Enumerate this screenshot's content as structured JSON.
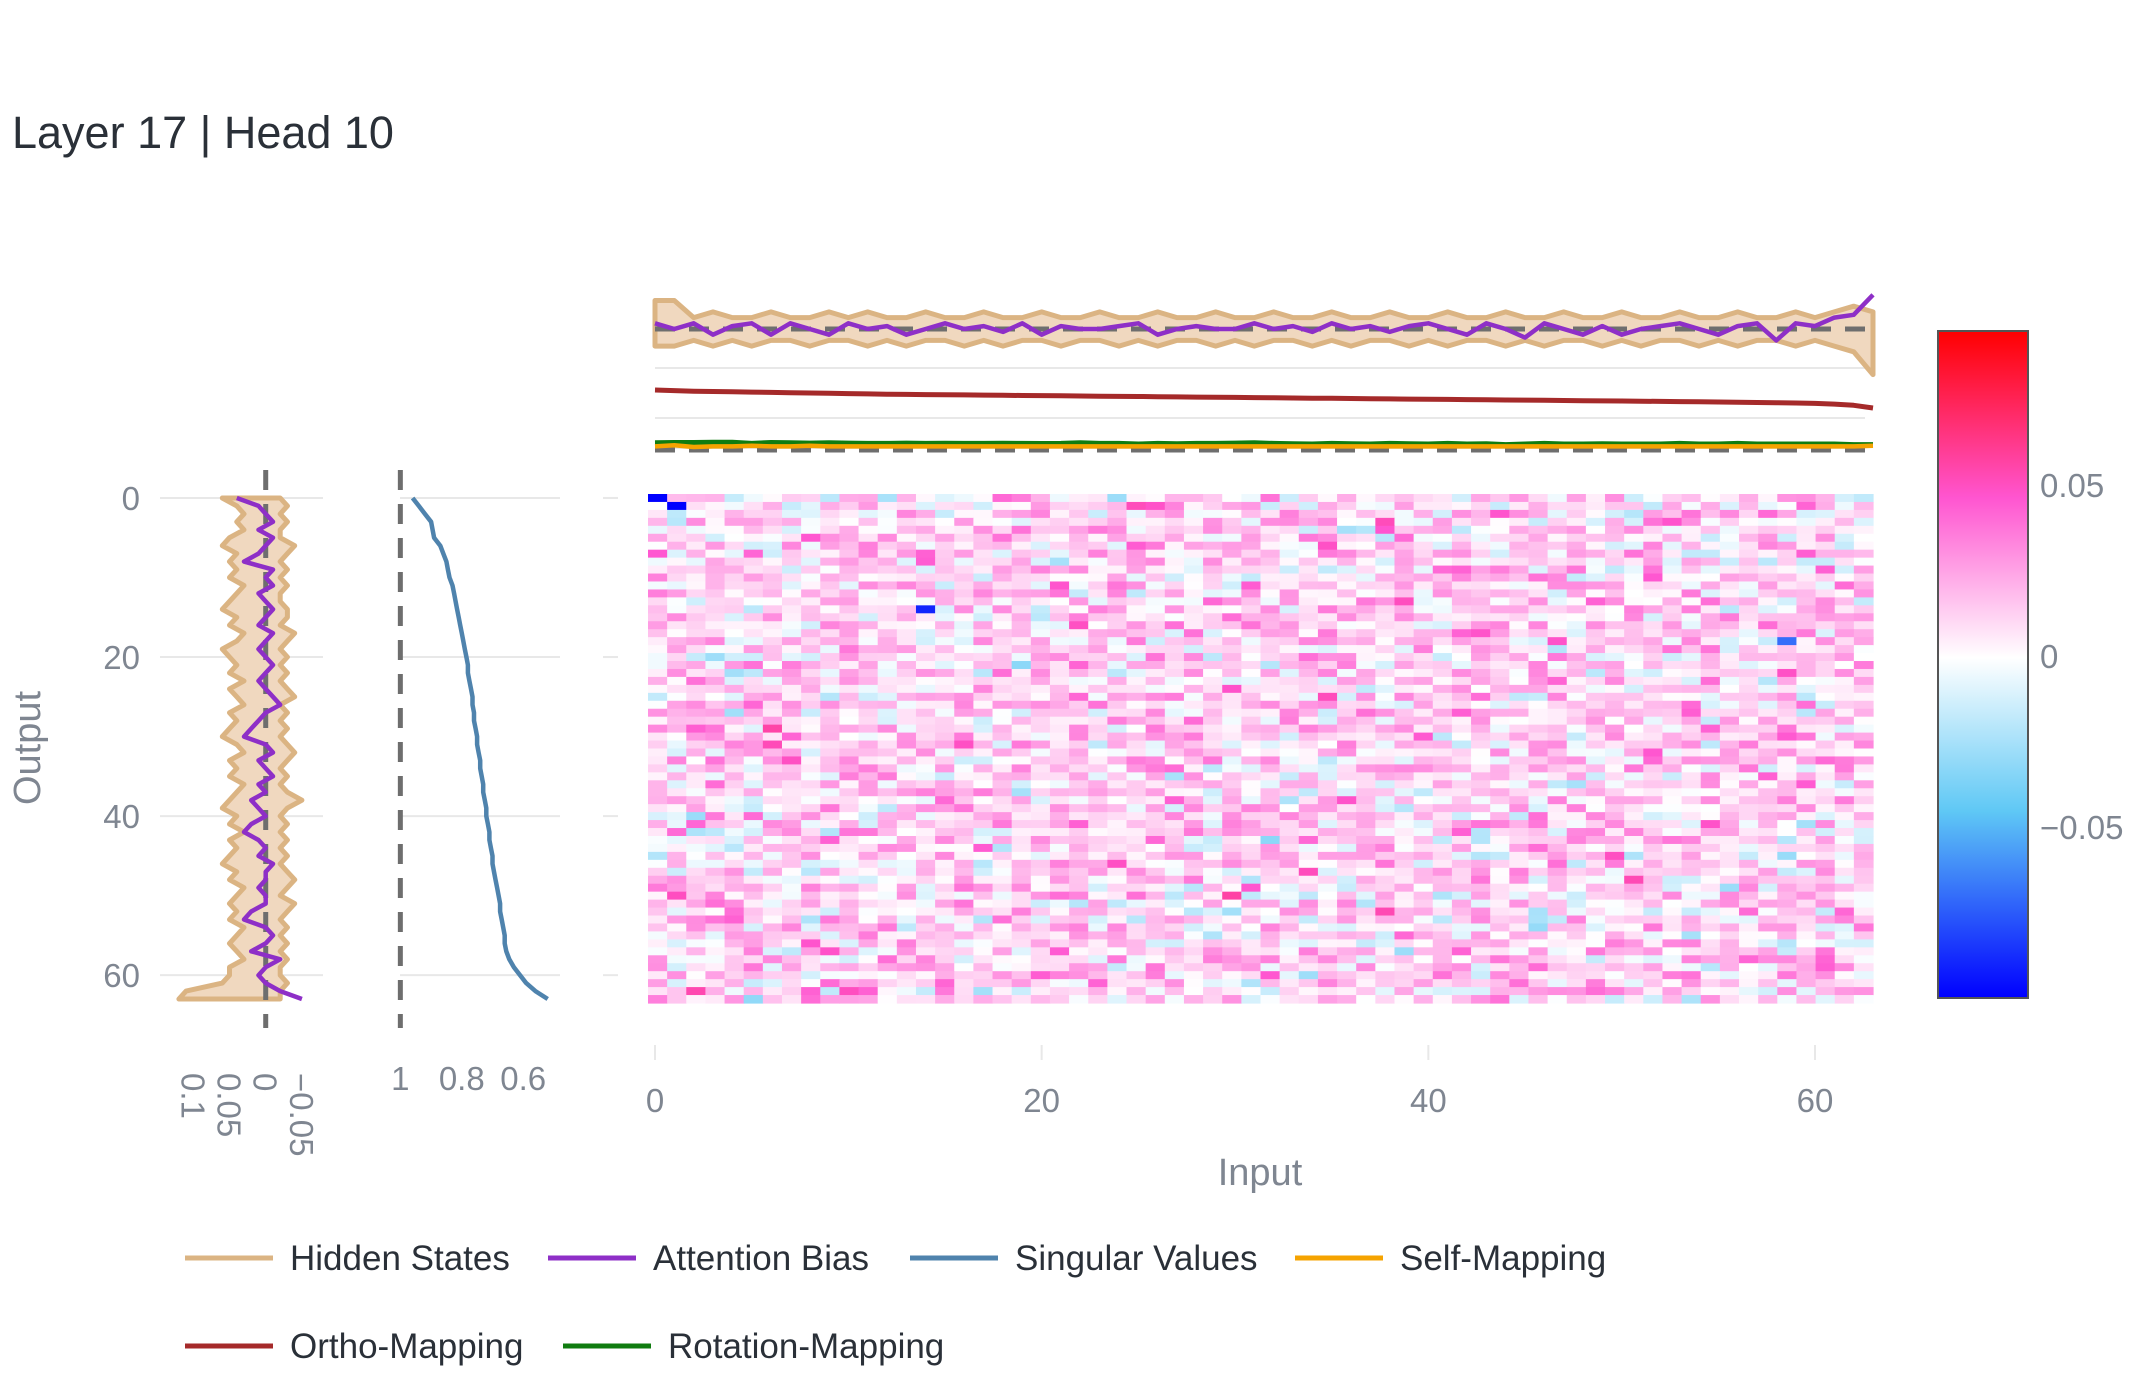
{
  "title": "Layer 17 | Head 10",
  "colors": {
    "hidden_states": "#dbb483",
    "hidden_states_fill": "#f0d8bf",
    "attention_bias": "#8e2fc7",
    "singular_values": "#4f83ad",
    "self_mapping": "#f5a300",
    "ortho_mapping": "#a52a2a",
    "rotation_mapping": "#107c10",
    "grid": "#e8e8e8",
    "reference_line": "#6e6e6e"
  },
  "chart_data": [
    {
      "name": "weight-heatmap",
      "type": "heatmap",
      "rows": 64,
      "cols": 64,
      "xlabel": "Input",
      "ylabel": "Output",
      "xticks": [
        "0",
        "20",
        "40",
        "60"
      ],
      "yticks": [
        "0",
        "20",
        "40",
        "60"
      ],
      "colorscale": [
        "#0000ff",
        "#5fc8f5",
        "#ffffff",
        "#ff55d0",
        "#ff0000"
      ],
      "zmin": -0.1,
      "zmax": 0.095,
      "notable_cells": [
        {
          "row": 0,
          "col": 0,
          "value": -0.1
        },
        {
          "row": 1,
          "col": 1,
          "value": -0.1
        },
        {
          "row": 14,
          "col": 14,
          "value": -0.09
        },
        {
          "row": 18,
          "col": 59,
          "value": -0.07
        }
      ]
    },
    {
      "name": "colorbar",
      "type": "colorbar",
      "range": [
        -0.1,
        0.095
      ],
      "ticks": [
        "0.05",
        "0",
        "−0.05"
      ],
      "tick_values": [
        0.05,
        0,
        -0.05
      ]
    },
    {
      "name": "top-panel",
      "type": "line",
      "x": "input index 0–63",
      "series": [
        {
          "name": "Hidden States",
          "kind": "band",
          "values_lower": [
            -0.03,
            -0.03,
            -0.02,
            -0.03,
            -0.02,
            -0.03,
            -0.02,
            -0.02,
            -0.03,
            -0.02,
            -0.02,
            -0.03,
            -0.02,
            -0.03,
            -0.02,
            -0.02,
            -0.03,
            -0.02,
            -0.03,
            -0.02,
            -0.02,
            -0.03,
            -0.02,
            -0.02,
            -0.03,
            -0.02,
            -0.03,
            -0.02,
            -0.02,
            -0.03,
            -0.02,
            -0.03,
            -0.02,
            -0.02,
            -0.03,
            -0.02,
            -0.03,
            -0.02,
            -0.02,
            -0.03,
            -0.02,
            -0.03,
            -0.02,
            -0.02,
            -0.03,
            -0.02,
            -0.03,
            -0.02,
            -0.02,
            -0.03,
            -0.02,
            -0.03,
            -0.02,
            -0.02,
            -0.03,
            -0.02,
            -0.03,
            -0.02,
            -0.02,
            -0.03,
            -0.02,
            -0.03,
            -0.04,
            -0.08
          ],
          "values_upper": [
            0.05,
            0.05,
            0.02,
            0.03,
            0.02,
            0.02,
            0.03,
            0.02,
            0.02,
            0.03,
            0.02,
            0.03,
            0.02,
            0.02,
            0.03,
            0.02,
            0.02,
            0.03,
            0.02,
            0.02,
            0.03,
            0.02,
            0.02,
            0.03,
            0.02,
            0.02,
            0.03,
            0.02,
            0.02,
            0.03,
            0.02,
            0.02,
            0.03,
            0.02,
            0.02,
            0.03,
            0.02,
            0.02,
            0.03,
            0.02,
            0.02,
            0.03,
            0.02,
            0.02,
            0.03,
            0.02,
            0.02,
            0.03,
            0.02,
            0.02,
            0.03,
            0.02,
            0.02,
            0.03,
            0.02,
            0.02,
            0.03,
            0.02,
            0.02,
            0.03,
            0.02,
            0.03,
            0.04,
            0.03
          ]
        },
        {
          "name": "Attention Bias",
          "values": [
            0.01,
            0.0,
            0.01,
            -0.01,
            0.005,
            0.01,
            -0.01,
            0.01,
            0.0,
            -0.01,
            0.01,
            0.0,
            0.005,
            -0.01,
            0.0,
            0.01,
            0.0,
            0.005,
            -0.005,
            0.01,
            -0.01,
            0.005,
            0.0,
            0.0,
            0.005,
            0.01,
            -0.01,
            0.0,
            0.005,
            0.0,
            0.0,
            0.01,
            0.0,
            0.005,
            -0.005,
            0.01,
            0.0,
            0.005,
            -0.005,
            0.005,
            0.01,
            0.0,
            -0.01,
            0.01,
            0.0,
            -0.015,
            0.01,
            0.0,
            -0.01,
            0.005,
            -0.01,
            0.0,
            0.005,
            0.01,
            0.0,
            -0.01,
            0.005,
            0.01,
            -0.02,
            0.01,
            0.005,
            0.02,
            0.025,
            0.06
          ]
        },
        {
          "name": "Ortho-Mapping",
          "values": [
            1.0,
            0.99,
            0.98,
            0.975,
            0.97,
            0.965,
            0.96,
            0.955,
            0.95,
            0.945,
            0.94,
            0.935,
            0.93,
            0.927,
            0.924,
            0.921,
            0.918,
            0.915,
            0.912,
            0.909,
            0.906,
            0.903,
            0.9,
            0.897,
            0.894,
            0.891,
            0.888,
            0.885,
            0.882,
            0.879,
            0.876,
            0.873,
            0.87,
            0.867,
            0.864,
            0.861,
            0.858,
            0.855,
            0.852,
            0.849,
            0.846,
            0.843,
            0.84,
            0.837,
            0.834,
            0.831,
            0.828,
            0.825,
            0.822,
            0.819,
            0.816,
            0.813,
            0.81,
            0.807,
            0.804,
            0.8,
            0.796,
            0.792,
            0.788,
            0.783,
            0.776,
            0.765,
            0.745,
            0.7
          ]
        },
        {
          "name": "Rotation-Mapping",
          "values": [
            0.12,
            0.125,
            0.125,
            0.13,
            0.13,
            0.11,
            0.125,
            0.12,
            0.115,
            0.12,
            0.115,
            0.11,
            0.11,
            0.115,
            0.11,
            0.112,
            0.11,
            0.11,
            0.112,
            0.11,
            0.108,
            0.11,
            0.12,
            0.11,
            0.11,
            0.1,
            0.11,
            0.105,
            0.11,
            0.11,
            0.115,
            0.12,
            0.11,
            0.105,
            0.1,
            0.11,
            0.105,
            0.1,
            0.11,
            0.105,
            0.1,
            0.11,
            0.1,
            0.105,
            0.09,
            0.1,
            0.11,
            0.1,
            0.1,
            0.105,
            0.1,
            0.1,
            0.1,
            0.11,
            0.1,
            0.1,
            0.11,
            0.1,
            0.1,
            0.1,
            0.1,
            0.1,
            0.09,
            0.09
          ]
        },
        {
          "name": "Self-Mapping",
          "values": [
            0.06,
            0.08,
            0.05,
            0.06,
            0.06,
            0.07,
            0.06,
            0.06,
            0.07,
            0.06,
            0.06,
            0.06,
            0.06,
            0.06,
            0.06,
            0.06,
            0.06,
            0.06,
            0.06,
            0.06,
            0.06,
            0.06,
            0.06,
            0.06,
            0.06,
            0.06,
            0.06,
            0.06,
            0.06,
            0.06,
            0.06,
            0.06,
            0.06,
            0.06,
            0.06,
            0.06,
            0.06,
            0.06,
            0.06,
            0.06,
            0.06,
            0.06,
            0.06,
            0.06,
            0.06,
            0.06,
            0.06,
            0.06,
            0.06,
            0.06,
            0.06,
            0.06,
            0.06,
            0.06,
            0.06,
            0.06,
            0.06,
            0.06,
            0.06,
            0.06,
            0.06,
            0.06,
            0.06,
            0.07
          ]
        }
      ]
    },
    {
      "name": "left-panel",
      "type": "line",
      "orientation": "vertical",
      "xticks": [
        "0.1",
        "0.05",
        "0",
        "−0.05"
      ],
      "xtick_values": [
        0.1,
        0.05,
        0,
        -0.05
      ],
      "xrange": [
        0.135,
        -0.075
      ],
      "series": [
        {
          "name": "Hidden States",
          "kind": "band",
          "values_lower": [
            -0.02,
            -0.03,
            -0.02,
            -0.03,
            -0.02,
            -0.02,
            -0.04,
            -0.03,
            -0.02,
            -0.03,
            -0.02,
            -0.03,
            -0.02,
            -0.02,
            -0.03,
            -0.03,
            -0.02,
            -0.04,
            -0.03,
            -0.02,
            -0.03,
            -0.02,
            -0.03,
            -0.02,
            -0.03,
            -0.04,
            -0.02,
            -0.03,
            -0.02,
            -0.03,
            -0.02,
            -0.03,
            -0.04,
            -0.03,
            -0.02,
            -0.03,
            -0.02,
            -0.03,
            -0.05,
            -0.03,
            -0.02,
            -0.03,
            -0.02,
            -0.03,
            -0.02,
            -0.03,
            -0.02,
            -0.03,
            -0.04,
            -0.03,
            -0.02,
            -0.04,
            -0.03,
            -0.02,
            -0.03,
            -0.02,
            -0.03,
            -0.02,
            -0.03,
            -0.02,
            -0.02,
            -0.03,
            -0.02,
            -0.02
          ],
          "values_upper": [
            0.06,
            0.04,
            0.03,
            0.04,
            0.03,
            0.05,
            0.06,
            0.04,
            0.05,
            0.04,
            0.05,
            0.03,
            0.04,
            0.05,
            0.06,
            0.04,
            0.05,
            0.03,
            0.04,
            0.06,
            0.05,
            0.04,
            0.05,
            0.03,
            0.05,
            0.04,
            0.03,
            0.05,
            0.04,
            0.05,
            0.06,
            0.04,
            0.03,
            0.05,
            0.04,
            0.05,
            0.03,
            0.04,
            0.05,
            0.06,
            0.04,
            0.05,
            0.03,
            0.05,
            0.04,
            0.05,
            0.06,
            0.04,
            0.05,
            0.03,
            0.04,
            0.05,
            0.04,
            0.05,
            0.03,
            0.04,
            0.05,
            0.04,
            0.03,
            0.05,
            0.05,
            0.06,
            0.11,
            0.12
          ]
        },
        {
          "name": "Attention Bias",
          "values": [
            0.04,
            0.01,
            0.0,
            -0.01,
            0.01,
            -0.01,
            0.0,
            0.01,
            0.03,
            -0.01,
            0.0,
            -0.01,
            0.01,
            0.0,
            -0.01,
            0.0,
            0.01,
            -0.01,
            0.0,
            0.01,
            0.0,
            -0.01,
            0.0,
            0.01,
            0.0,
            -0.01,
            -0.02,
            0.0,
            0.01,
            0.02,
            0.03,
            0.0,
            -0.01,
            0.01,
            0.0,
            -0.01,
            0.01,
            0.0,
            0.02,
            0.01,
            0.0,
            0.02,
            0.03,
            0.01,
            0.0,
            0.01,
            -0.01,
            0.0,
            0.0,
            0.01,
            0.0,
            0.0,
            0.02,
            0.03,
            0.0,
            -0.01,
            0.0,
            0.02,
            -0.02,
            0.0,
            0.01,
            0.0,
            -0.02,
            -0.05
          ]
        }
      ]
    },
    {
      "name": "singular-values-panel",
      "type": "line",
      "orientation": "vertical",
      "xticks": [
        "1",
        "0.8",
        "0.6"
      ],
      "xtick_values": [
        1,
        0.8,
        0.6
      ],
      "xrange": [
        1.05,
        0.48
      ],
      "series": [
        {
          "name": "Singular Values",
          "values": [
            0.96,
            0.94,
            0.92,
            0.9,
            0.895,
            0.89,
            0.87,
            0.86,
            0.85,
            0.845,
            0.84,
            0.83,
            0.825,
            0.82,
            0.815,
            0.81,
            0.805,
            0.8,
            0.795,
            0.79,
            0.785,
            0.78,
            0.78,
            0.775,
            0.77,
            0.765,
            0.765,
            0.76,
            0.76,
            0.755,
            0.75,
            0.75,
            0.745,
            0.74,
            0.74,
            0.735,
            0.73,
            0.73,
            0.725,
            0.72,
            0.72,
            0.715,
            0.71,
            0.71,
            0.705,
            0.7,
            0.7,
            0.695,
            0.69,
            0.685,
            0.68,
            0.675,
            0.675,
            0.67,
            0.665,
            0.66,
            0.66,
            0.655,
            0.645,
            0.63,
            0.61,
            0.59,
            0.56,
            0.52
          ]
        }
      ]
    }
  ],
  "legend": {
    "placement": "bottom",
    "items": [
      {
        "label": "Hidden States",
        "color": "#dbb483"
      },
      {
        "label": "Attention Bias",
        "color": "#8e2fc7"
      },
      {
        "label": "Singular Values",
        "color": "#4f83ad"
      },
      {
        "label": "Self-Mapping",
        "color": "#f5a300"
      },
      {
        "label": "Ortho-Mapping",
        "color": "#a52a2a"
      },
      {
        "label": "Rotation-Mapping",
        "color": "#107c10"
      }
    ]
  }
}
